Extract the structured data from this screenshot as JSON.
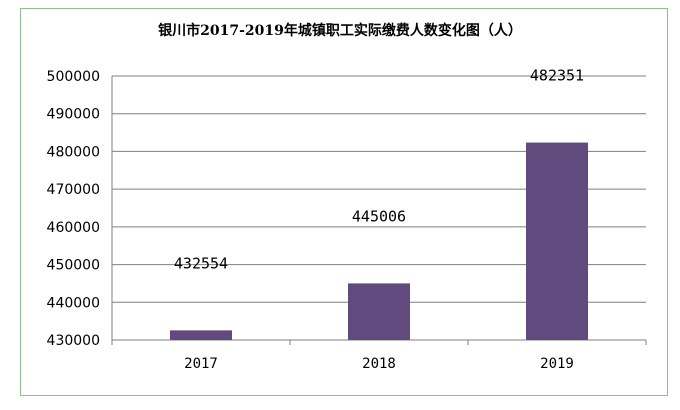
{
  "chart_data": {
    "type": "bar",
    "title": "银川市2017-2019年城镇职工实际缴费人数变化图（人）",
    "categories": [
      "2017",
      "2018",
      "2019"
    ],
    "values": [
      432554,
      445006,
      482351
    ],
    "data_labels": [
      "432554",
      "445006",
      "482351"
    ],
    "xlabel": "",
    "ylabel": "",
    "ylim": [
      430000,
      500000
    ],
    "yticks": [
      "430000",
      "440000",
      "450000",
      "460000",
      "470000",
      "480000",
      "490000",
      "500000"
    ],
    "grid": true,
    "legend": "none",
    "bar_color": "#614b7e",
    "grid_color": "#7f7f7f",
    "frame_color": "#8fbf8f"
  }
}
